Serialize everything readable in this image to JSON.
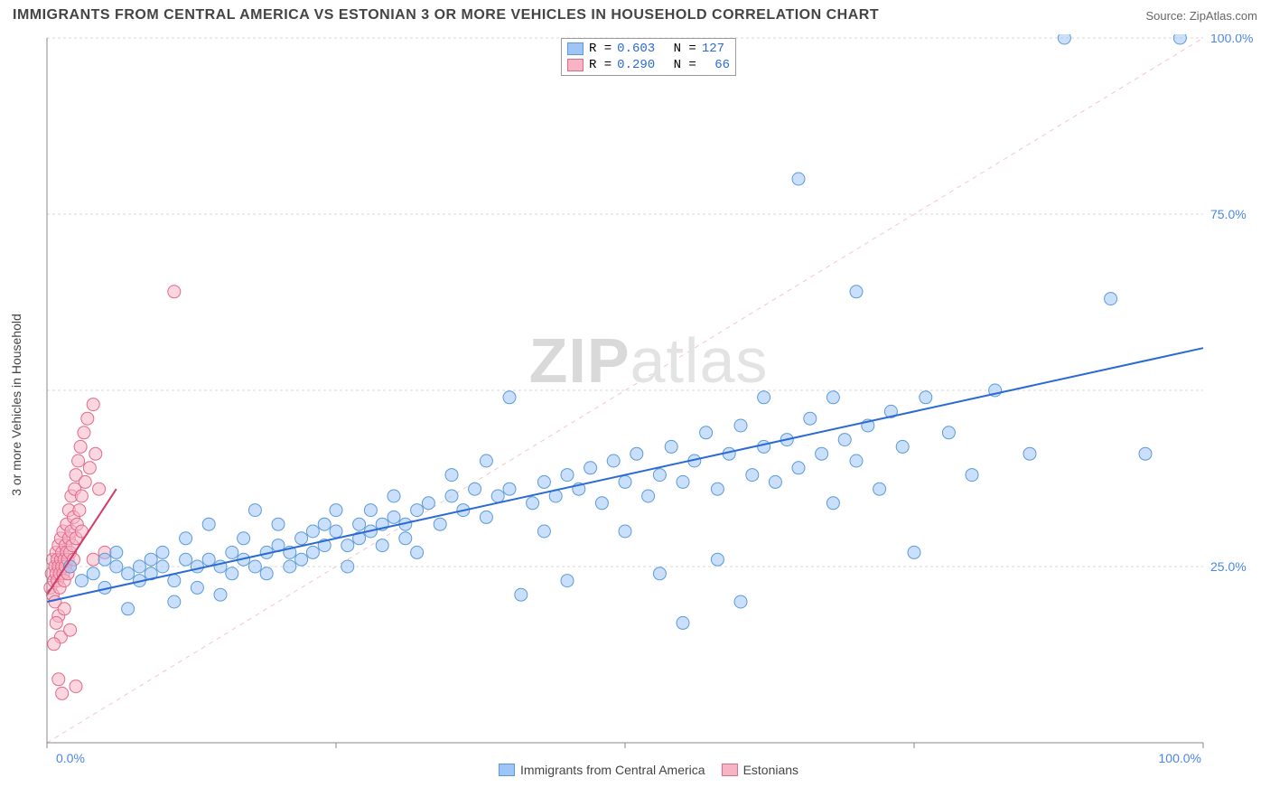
{
  "header": {
    "title": "IMMIGRANTS FROM CENTRAL AMERICA VS ESTONIAN 3 OR MORE VEHICLES IN HOUSEHOLD CORRELATION CHART",
    "source_label": "Source: ",
    "source_value": "ZipAtlas.com"
  },
  "chart": {
    "type": "scatter",
    "watermark_bold": "ZIP",
    "watermark_thin": "atlas",
    "y_axis_label": "3 or more Vehicles in Household",
    "xlim": [
      0,
      100
    ],
    "ylim": [
      0,
      100
    ],
    "x_ticks": [
      0,
      25,
      50,
      75,
      100
    ],
    "y_ticks": [
      0,
      25,
      50,
      75,
      100
    ],
    "x_tick_labels": [
      "0.0%",
      "",
      "",
      "",
      "100.0%"
    ],
    "y_tick_labels": [
      "",
      "25.0%",
      "",
      "75.0%",
      "100.0%"
    ],
    "grid_color": "#d9d9d9",
    "grid_dash": "3,3",
    "axis_color": "#888888",
    "background_color": "#ffffff",
    "marker_radius": 7,
    "marker_stroke_width": 1,
    "series": [
      {
        "name": "Immigrants from Central America",
        "fill": "#9fc5f8",
        "fill_opacity": 0.55,
        "stroke": "#5b9bd5",
        "R": "0.603",
        "N": "127",
        "trend": {
          "x1": 0,
          "y1": 20,
          "x2": 100,
          "y2": 56,
          "color": "#2a6ad4",
          "width": 2,
          "dash": "none"
        },
        "identity_line": {
          "x1": 0,
          "y1": 0,
          "x2": 100,
          "y2": 100,
          "color": "#f4c7c7",
          "width": 1,
          "dash": "5,5"
        },
        "points": [
          [
            2,
            25
          ],
          [
            3,
            23
          ],
          [
            4,
            24
          ],
          [
            5,
            22
          ],
          [
            5,
            26
          ],
          [
            6,
            25
          ],
          [
            6,
            27
          ],
          [
            7,
            24
          ],
          [
            7,
            19
          ],
          [
            8,
            25
          ],
          [
            8,
            23
          ],
          [
            9,
            26
          ],
          [
            9,
            24
          ],
          [
            10,
            25
          ],
          [
            10,
            27
          ],
          [
            11,
            23
          ],
          [
            11,
            20
          ],
          [
            12,
            26
          ],
          [
            12,
            29
          ],
          [
            13,
            25
          ],
          [
            13,
            22
          ],
          [
            14,
            26
          ],
          [
            14,
            31
          ],
          [
            15,
            25
          ],
          [
            15,
            21
          ],
          [
            16,
            27
          ],
          [
            16,
            24
          ],
          [
            17,
            26
          ],
          [
            17,
            29
          ],
          [
            18,
            25
          ],
          [
            18,
            33
          ],
          [
            19,
            27
          ],
          [
            19,
            24
          ],
          [
            20,
            28
          ],
          [
            20,
            31
          ],
          [
            21,
            27
          ],
          [
            21,
            25
          ],
          [
            22,
            29
          ],
          [
            22,
            26
          ],
          [
            23,
            30
          ],
          [
            23,
            27
          ],
          [
            24,
            28
          ],
          [
            24,
            31
          ],
          [
            25,
            30
          ],
          [
            25,
            33
          ],
          [
            26,
            28
          ],
          [
            26,
            25
          ],
          [
            27,
            31
          ],
          [
            27,
            29
          ],
          [
            28,
            30
          ],
          [
            28,
            33
          ],
          [
            29,
            31
          ],
          [
            29,
            28
          ],
          [
            30,
            32
          ],
          [
            30,
            35
          ],
          [
            31,
            31
          ],
          [
            31,
            29
          ],
          [
            32,
            33
          ],
          [
            32,
            27
          ],
          [
            33,
            34
          ],
          [
            34,
            31
          ],
          [
            35,
            35
          ],
          [
            35,
            38
          ],
          [
            36,
            33
          ],
          [
            37,
            36
          ],
          [
            38,
            32
          ],
          [
            38,
            40
          ],
          [
            39,
            35
          ],
          [
            40,
            49
          ],
          [
            40,
            36
          ],
          [
            41,
            21
          ],
          [
            42,
            34
          ],
          [
            43,
            37
          ],
          [
            43,
            30
          ],
          [
            44,
            35
          ],
          [
            45,
            38
          ],
          [
            45,
            23
          ],
          [
            46,
            36
          ],
          [
            47,
            39
          ],
          [
            48,
            34
          ],
          [
            49,
            40
          ],
          [
            50,
            37
          ],
          [
            50,
            30
          ],
          [
            51,
            41
          ],
          [
            52,
            35
          ],
          [
            53,
            38
          ],
          [
            53,
            24
          ],
          [
            54,
            42
          ],
          [
            55,
            37
          ],
          [
            55,
            17
          ],
          [
            56,
            40
          ],
          [
            57,
            44
          ],
          [
            58,
            36
          ],
          [
            58,
            26
          ],
          [
            59,
            41
          ],
          [
            60,
            45
          ],
          [
            60,
            20
          ],
          [
            61,
            38
          ],
          [
            62,
            42
          ],
          [
            62,
            49
          ],
          [
            63,
            37
          ],
          [
            64,
            43
          ],
          [
            65,
            80
          ],
          [
            65,
            39
          ],
          [
            66,
            46
          ],
          [
            67,
            41
          ],
          [
            68,
            34
          ],
          [
            68,
            49
          ],
          [
            69,
            43
          ],
          [
            70,
            40
          ],
          [
            70,
            64
          ],
          [
            71,
            45
          ],
          [
            72,
            36
          ],
          [
            73,
            47
          ],
          [
            74,
            42
          ],
          [
            75,
            27
          ],
          [
            76,
            49
          ],
          [
            78,
            44
          ],
          [
            80,
            38
          ],
          [
            82,
            50
          ],
          [
            85,
            41
          ],
          [
            88,
            100
          ],
          [
            92,
            63
          ],
          [
            95,
            41
          ],
          [
            98,
            100
          ]
        ]
      },
      {
        "name": "Estonians",
        "fill": "#f8b4c4",
        "fill_opacity": 0.55,
        "stroke": "#e06a8a",
        "R": "0.290",
        "N": "66",
        "trend": {
          "x1": 0,
          "y1": 21,
          "x2": 6,
          "y2": 36,
          "color": "#d23c6a",
          "width": 2,
          "dash": "none"
        },
        "points": [
          [
            0.3,
            22
          ],
          [
            0.4,
            24
          ],
          [
            0.5,
            21
          ],
          [
            0.5,
            26
          ],
          [
            0.6,
            23
          ],
          [
            0.7,
            25
          ],
          [
            0.7,
            20
          ],
          [
            0.8,
            24
          ],
          [
            0.8,
            27
          ],
          [
            0.9,
            23
          ],
          [
            0.9,
            26
          ],
          [
            1.0,
            25
          ],
          [
            1.0,
            28
          ],
          [
            1.1,
            24
          ],
          [
            1.1,
            22
          ],
          [
            1.2,
            26
          ],
          [
            1.2,
            29
          ],
          [
            1.3,
            25
          ],
          [
            1.3,
            27
          ],
          [
            1.4,
            24
          ],
          [
            1.4,
            30
          ],
          [
            1.5,
            26
          ],
          [
            1.5,
            23
          ],
          [
            1.6,
            28
          ],
          [
            1.6,
            25
          ],
          [
            1.7,
            27
          ],
          [
            1.7,
            31
          ],
          [
            1.8,
            26
          ],
          [
            1.8,
            24
          ],
          [
            1.9,
            29
          ],
          [
            1.9,
            33
          ],
          [
            2.0,
            27
          ],
          [
            2.0,
            25
          ],
          [
            2.1,
            30
          ],
          [
            2.1,
            35
          ],
          [
            2.2,
            28
          ],
          [
            2.3,
            32
          ],
          [
            2.3,
            26
          ],
          [
            2.4,
            36
          ],
          [
            2.5,
            29
          ],
          [
            2.5,
            38
          ],
          [
            2.6,
            31
          ],
          [
            2.7,
            40
          ],
          [
            2.8,
            33
          ],
          [
            2.9,
            42
          ],
          [
            3.0,
            35
          ],
          [
            3.0,
            30
          ],
          [
            3.2,
            44
          ],
          [
            3.3,
            37
          ],
          [
            3.5,
            46
          ],
          [
            3.7,
            39
          ],
          [
            4.0,
            48
          ],
          [
            4.2,
            41
          ],
          [
            4.5,
            36
          ],
          [
            5.0,
            27
          ],
          [
            1.0,
            18
          ],
          [
            0.8,
            17
          ],
          [
            1.2,
            15
          ],
          [
            1.5,
            19
          ],
          [
            0.6,
            14
          ],
          [
            2.0,
            16
          ],
          [
            1.0,
            9
          ],
          [
            1.3,
            7
          ],
          [
            2.5,
            8
          ],
          [
            4.0,
            26
          ],
          [
            11,
            64
          ]
        ]
      }
    ],
    "legend_top": {
      "label_R": "R =",
      "label_N": "N =",
      "value_color": "#2a6ad4"
    },
    "legend_bottom": {
      "items": [
        "Immigrants from Central America",
        "Estonians"
      ]
    }
  }
}
